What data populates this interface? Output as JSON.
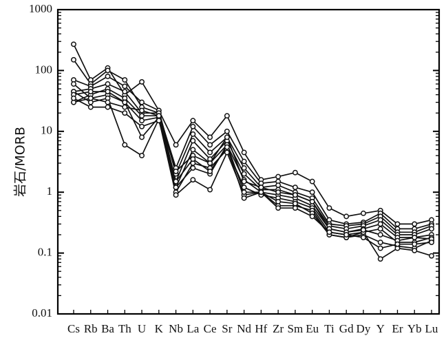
{
  "chart_data": {
    "type": "line",
    "title": "",
    "xlabel": "",
    "ylabel": "岩石/MORB",
    "yscale": "log",
    "ylim": [
      0.01,
      1000
    ],
    "grid": false,
    "legend": "none",
    "yticks": [
      "0.01",
      "0.1",
      "1",
      "10",
      "100",
      "1000"
    ],
    "categories": [
      "Cs",
      "Rb",
      "Ba",
      "Th",
      "U",
      "K",
      "Nb",
      "La",
      "Ce",
      "Sr",
      "Nd",
      "Hf",
      "Zr",
      "Sm",
      "Eu",
      "Ti",
      "Gd",
      "Dy",
      "Y",
      "Er",
      "Yb",
      "Lu"
    ],
    "category_labels": [
      "Cs",
      "Rb",
      "Ba",
      "Th",
      "U",
      "K",
      "Nb",
      "La",
      "Ce",
      "Sr",
      "Nd",
      "Hf",
      "Zr",
      "Sm",
      "Eu",
      "Ti",
      "Gd",
      "Dy",
      "Y",
      "Er",
      "Yb",
      "Lu"
    ],
    "series": [
      {
        "values": [
          270,
          70,
          110,
          40,
          65,
          22,
          6,
          15,
          8,
          18,
          4.5,
          1.6,
          1.8,
          2.1,
          1.5,
          0.55,
          0.4,
          0.45,
          0.5,
          0.3,
          0.3,
          0.35
        ]
      },
      {
        "values": [
          150,
          60,
          100,
          70,
          25,
          20,
          2.5,
          12,
          6,
          10,
          3.2,
          1.4,
          1.5,
          1.2,
          1.0,
          0.35,
          0.3,
          0.32,
          0.45,
          0.25,
          0.25,
          0.3
        ]
      },
      {
        "values": [
          70,
          55,
          80,
          55,
          30,
          22,
          2.0,
          9,
          4.5,
          8,
          2.5,
          1.2,
          1.3,
          1.0,
          0.8,
          0.3,
          0.28,
          0.3,
          0.4,
          0.22,
          0.22,
          0.28
        ]
      },
      {
        "values": [
          45,
          50,
          60,
          45,
          20,
          20,
          1.5,
          7,
          3.5,
          7,
          2.0,
          1.1,
          1.1,
          0.9,
          0.7,
          0.28,
          0.25,
          0.28,
          0.35,
          0.2,
          0.2,
          0.25
        ]
      },
      {
        "values": [
          30,
          40,
          50,
          35,
          18,
          18,
          1.2,
          5,
          3,
          6,
          1.6,
          1.0,
          0.9,
          0.8,
          0.6,
          0.25,
          0.22,
          0.25,
          0.3,
          0.18,
          0.18,
          0.2
        ]
      },
      {
        "values": [
          30,
          35,
          40,
          30,
          15,
          17,
          1.0,
          3,
          2.5,
          5,
          1.2,
          0.9,
          0.8,
          0.7,
          0.55,
          0.22,
          0.2,
          0.22,
          0.25,
          0.15,
          0.15,
          0.18
        ]
      },
      {
        "values": [
          45,
          30,
          35,
          6,
          4,
          16,
          0.9,
          1.6,
          1.1,
          4.5,
          0.9,
          1.0,
          0.6,
          0.6,
          0.5,
          0.2,
          0.18,
          0.2,
          0.15,
          0.13,
          0.12,
          0.16
        ]
      },
      {
        "values": [
          40,
          45,
          45,
          30,
          8,
          17,
          1.2,
          2.5,
          2.0,
          6,
          1.0,
          1.0,
          0.7,
          0.65,
          0.45,
          0.2,
          0.18,
          0.22,
          0.08,
          0.12,
          0.11,
          0.09
        ]
      },
      {
        "values": [
          60,
          35,
          30,
          25,
          22,
          18,
          2.2,
          4,
          3,
          8,
          1.5,
          1.2,
          1.0,
          0.9,
          0.7,
          0.25,
          0.22,
          0.24,
          0.2,
          0.16,
          0.18,
          0.17
        ]
      },
      {
        "values": [
          35,
          25,
          25,
          20,
          12,
          15,
          1.5,
          3.5,
          2.2,
          5.5,
          0.8,
          1.0,
          0.55,
          0.55,
          0.4,
          0.22,
          0.2,
          0.18,
          0.12,
          0.14,
          0.14,
          0.15
        ]
      }
    ]
  }
}
